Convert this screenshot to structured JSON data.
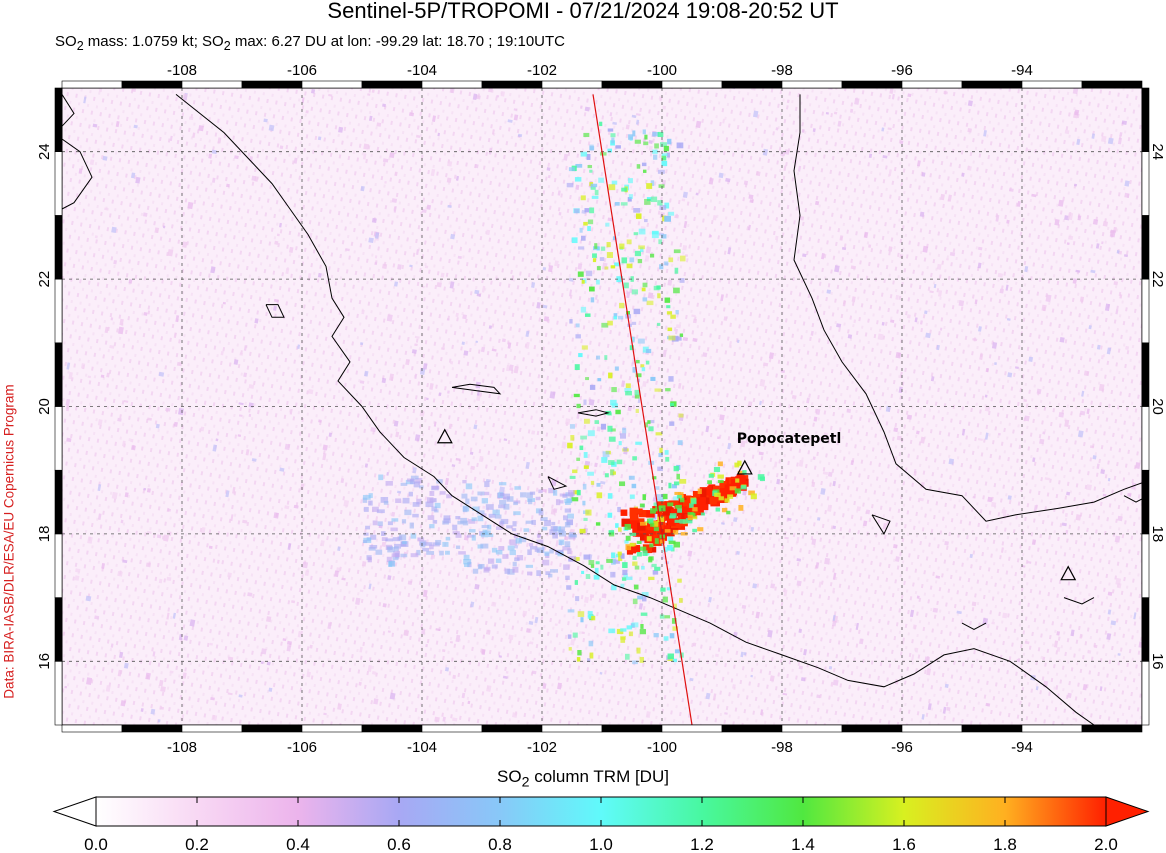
{
  "header": {
    "title": "Sentinel-5P/TROPOMI - 07/21/2024 19:08-20:52 UT",
    "subtitle_html": "SO<sub>2</sub> mass: 1.0759 kt; SO<sub>2</sub> max: 6.27 DU at lon: -99.29 lat: 18.70 ; 19:10UTC"
  },
  "side_credit": "Data: BIRA-IASB/DLR/ESA/EU Copernicus Program",
  "map": {
    "lon_range": [
      -110,
      -92
    ],
    "lat_range": [
      15,
      25
    ],
    "lon_ticks": [
      "-108",
      "-106",
      "-104",
      "-102",
      "-100",
      "-98",
      "-96",
      "-94"
    ],
    "lon_tick_values": [
      -108,
      -106,
      -104,
      -102,
      -100,
      -98,
      -96,
      -94
    ],
    "lat_ticks": [
      "16",
      "18",
      "20",
      "22",
      "24"
    ],
    "lat_tick_values": [
      16,
      18,
      20,
      22,
      24
    ],
    "volcanoes": [
      {
        "name": "Popocatepetl",
        "lon": -98.62,
        "lat": 19.02,
        "labeled": true
      },
      {
        "name": "",
        "lon": -103.62,
        "lat": 19.51,
        "labeled": false
      },
      {
        "name": "",
        "lon": -93.23,
        "lat": 17.36,
        "labeled": false
      }
    ],
    "orbit_track": [
      [
        -101.15,
        24.9
      ],
      [
        -99.5,
        15.0
      ]
    ],
    "plume_center": {
      "lon": -99.6,
      "lat": 18.4
    },
    "colors": {
      "background_tint": "#fbeefa",
      "coast": "#000000",
      "track": "#e01010",
      "plume_core": "#ff1f00"
    }
  },
  "colorbar": {
    "label_html": "SO<sub>2</sub> column TRM [DU]",
    "ticks": [
      "0.0",
      "0.2",
      "0.4",
      "0.6",
      "0.8",
      "1.0",
      "1.2",
      "1.4",
      "1.6",
      "1.8",
      "2.0"
    ],
    "tick_values": [
      0.0,
      0.2,
      0.4,
      0.6,
      0.8,
      1.0,
      1.2,
      1.4,
      1.6,
      1.8,
      2.0
    ],
    "range": [
      0.0,
      2.0
    ],
    "stops": [
      {
        "v": 0.0,
        "c": "#ffffff"
      },
      {
        "v": 0.2,
        "c": "#f8d8f4"
      },
      {
        "v": 0.4,
        "c": "#ecb4ec"
      },
      {
        "v": 0.6,
        "c": "#a8a8f4"
      },
      {
        "v": 0.8,
        "c": "#88c8f8"
      },
      {
        "v": 1.0,
        "c": "#60fafa"
      },
      {
        "v": 1.2,
        "c": "#48f8a0"
      },
      {
        "v": 1.4,
        "c": "#50e840"
      },
      {
        "v": 1.6,
        "c": "#d8f020"
      },
      {
        "v": 1.8,
        "c": "#ffb020"
      },
      {
        "v": 2.0,
        "c": "#ff2000"
      }
    ],
    "under_color": "#ffffff",
    "over_color": "#ff2000"
  }
}
